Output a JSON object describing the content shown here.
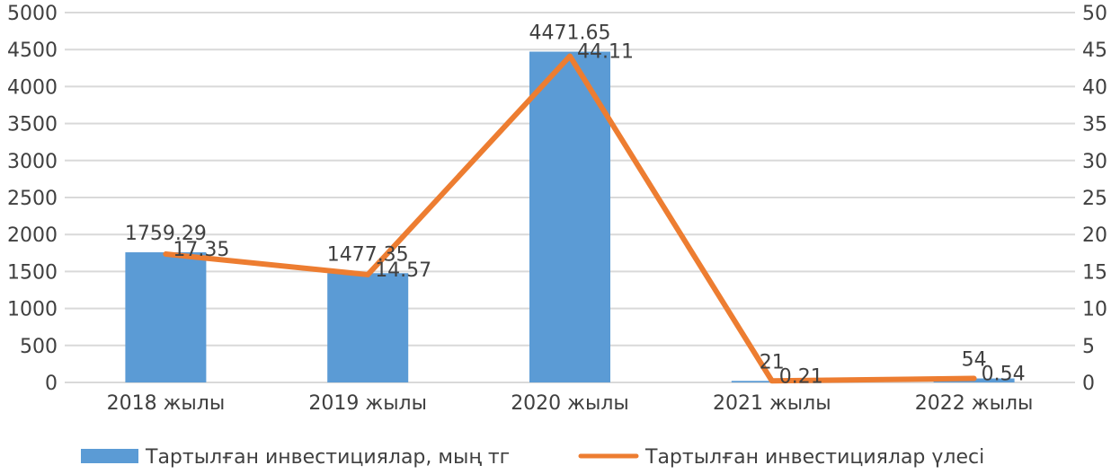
{
  "chart_data": {
    "type": "bar",
    "categories": [
      "2018 жылы",
      "2019 жылы",
      "2020 жылы",
      "2021 жылы",
      "2022 жылы"
    ],
    "series": [
      {
        "name": "Тартылған инвестициялар,  мың тг",
        "type": "bar",
        "axis": "left",
        "color": "#5B9BD5",
        "values": [
          1759.29,
          1477.35,
          4471.65,
          21,
          54
        ],
        "labels": [
          "1759.29",
          "1477.35",
          "4471.65",
          "21",
          "54"
        ]
      },
      {
        "name": "Тартылған инвестициялар үлесі",
        "type": "line",
        "axis": "right",
        "color": "#ED7D31",
        "values": [
          17.35,
          14.57,
          44.11,
          0.21,
          0.54
        ],
        "labels": [
          "17.35",
          "14.57",
          "44.11",
          "0.21",
          "0.54"
        ]
      }
    ],
    "y_left": {
      "range": [
        0,
        5000
      ],
      "ticks": [
        "0",
        "500",
        "1000",
        "1500",
        "2000",
        "2500",
        "3000",
        "3500",
        "4000",
        "4500",
        "5000"
      ]
    },
    "y_right": {
      "range": [
        0,
        50
      ],
      "ticks": [
        "0",
        "5",
        "10",
        "15",
        "20",
        "25",
        "30",
        "35",
        "40",
        "45",
        "50"
      ]
    },
    "grid": true,
    "legend_position": "bottom"
  }
}
